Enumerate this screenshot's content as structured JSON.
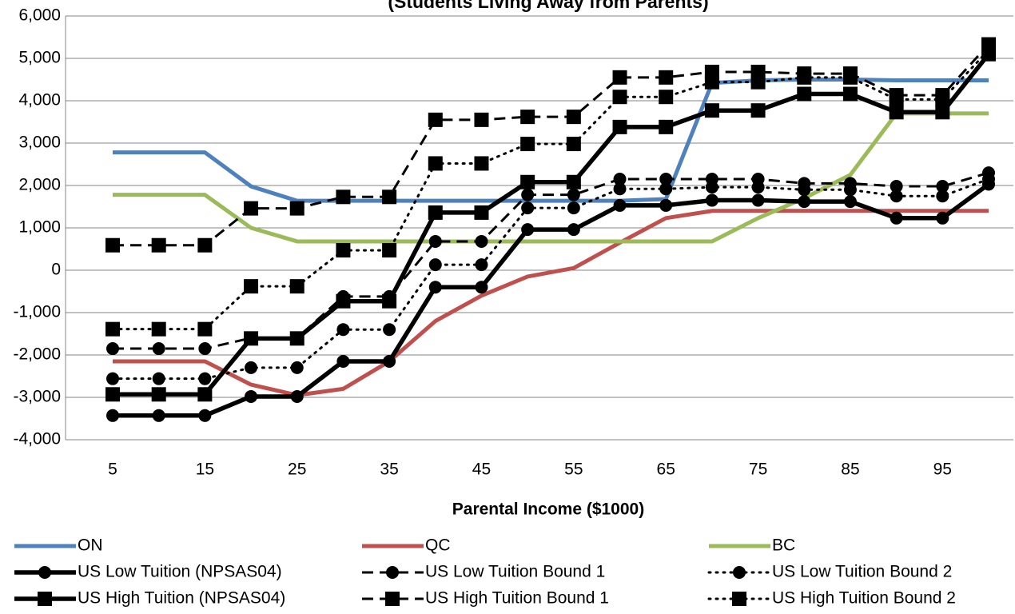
{
  "chart_data": {
    "type": "line",
    "title": "(Students Living Away from Parents)",
    "x_label": "Parental Income ($1000)",
    "categories": [
      "5",
      null,
      "15",
      null,
      "25",
      null,
      "35",
      null,
      "45",
      null,
      "55",
      null,
      "65",
      null,
      "75",
      null,
      "85",
      null,
      "95",
      null
    ],
    "ylim": [
      -4000,
      6000
    ],
    "yticks": [
      {
        "value": -4000,
        "label": "-4,000"
      },
      {
        "value": -3000,
        "label": "-3,000"
      },
      {
        "value": -2000,
        "label": "-2,000"
      },
      {
        "value": -1000,
        "label": "-1,000"
      },
      0,
      {
        "value": 1000,
        "label": "1,000"
      },
      {
        "value": 2000,
        "label": "2,000"
      },
      {
        "value": 3000,
        "label": "3,000"
      },
      {
        "value": 4000,
        "label": "4,000"
      },
      {
        "value": 5000,
        "label": "5,000"
      },
      {
        "value": 6000,
        "label": "6,000"
      }
    ],
    "grid": true,
    "legend": "bottom",
    "series": [
      {
        "name": "ON",
        "color": "#4f81bd",
        "line_style": "solid",
        "marker": "none",
        "values": [
          2780,
          2780,
          2780,
          1980,
          1640,
          1640,
          1640,
          1640,
          1640,
          1640,
          1640,
          1640,
          1680,
          4420,
          4480,
          4500,
          4500,
          4480,
          4480,
          4480
        ]
      },
      {
        "name": "QC",
        "color": "#c0504d",
        "line_style": "solid",
        "marker": "none",
        "values": [
          -2150,
          -2150,
          -2150,
          -2700,
          -2950,
          -2800,
          -2150,
          -1200,
          -600,
          -150,
          50,
          650,
          1230,
          1400,
          1400,
          1400,
          1400,
          1400,
          1400,
          1400
        ]
      },
      {
        "name": "BC",
        "color": "#9bbb59",
        "line_style": "solid",
        "marker": "none",
        "values": [
          1780,
          1780,
          1780,
          1000,
          680,
          680,
          680,
          680,
          680,
          680,
          680,
          680,
          680,
          680,
          1230,
          1700,
          2250,
          3700,
          3700,
          3700
        ]
      },
      {
        "name": "US Low Tuition (NPSAS04)",
        "color": "#000000",
        "line_style": "solid",
        "marker": "circle",
        "values": [
          -3430,
          -3430,
          -3430,
          -2980,
          -2980,
          -2150,
          -2150,
          -400,
          -400,
          960,
          960,
          1530,
          1530,
          1650,
          1650,
          1620,
          1620,
          1230,
          1230,
          2030
        ]
      },
      {
        "name": "US Low Tuition Bound 1",
        "color": "#000000",
        "line_style": "dashed",
        "marker": "circle",
        "values": [
          -1850,
          -1850,
          -1850,
          -1600,
          -1600,
          -620,
          -620,
          680,
          680,
          1780,
          1780,
          2150,
          2150,
          2150,
          2150,
          2050,
          2050,
          1980,
          1980,
          2300
        ]
      },
      {
        "name": "US Low Tuition Bound 2",
        "color": "#000000",
        "line_style": "dotted",
        "marker": "circle",
        "values": [
          -2560,
          -2560,
          -2560,
          -2300,
          -2300,
          -1400,
          -1400,
          130,
          130,
          1470,
          1470,
          1920,
          1920,
          1960,
          1960,
          1900,
          1900,
          1750,
          1750,
          2150
        ]
      },
      {
        "name": "US High Tuition (NPSAS04)",
        "color": "#000000",
        "line_style": "solid",
        "marker": "square",
        "values": [
          -2930,
          -2930,
          -2930,
          -1610,
          -1610,
          -730,
          -730,
          1360,
          1360,
          2080,
          2080,
          3380,
          3380,
          3770,
          3770,
          4160,
          4160,
          3730,
          3730,
          5100
        ]
      },
      {
        "name": "US High Tuition Bound 1",
        "color": "#000000",
        "line_style": "dashed",
        "marker": "square",
        "values": [
          590,
          590,
          590,
          1460,
          1460,
          1730,
          1730,
          3550,
          3550,
          3620,
          3620,
          4550,
          4550,
          4680,
          4680,
          4640,
          4640,
          4130,
          4130,
          5330
        ]
      },
      {
        "name": "US High Tuition Bound 2",
        "color": "#000000",
        "line_style": "dotted",
        "marker": "square",
        "values": [
          -1390,
          -1390,
          -1390,
          -380,
          -380,
          470,
          470,
          2520,
          2520,
          2980,
          2980,
          4090,
          4090,
          4440,
          4440,
          4550,
          4550,
          4030,
          4030,
          5200
        ]
      }
    ]
  }
}
